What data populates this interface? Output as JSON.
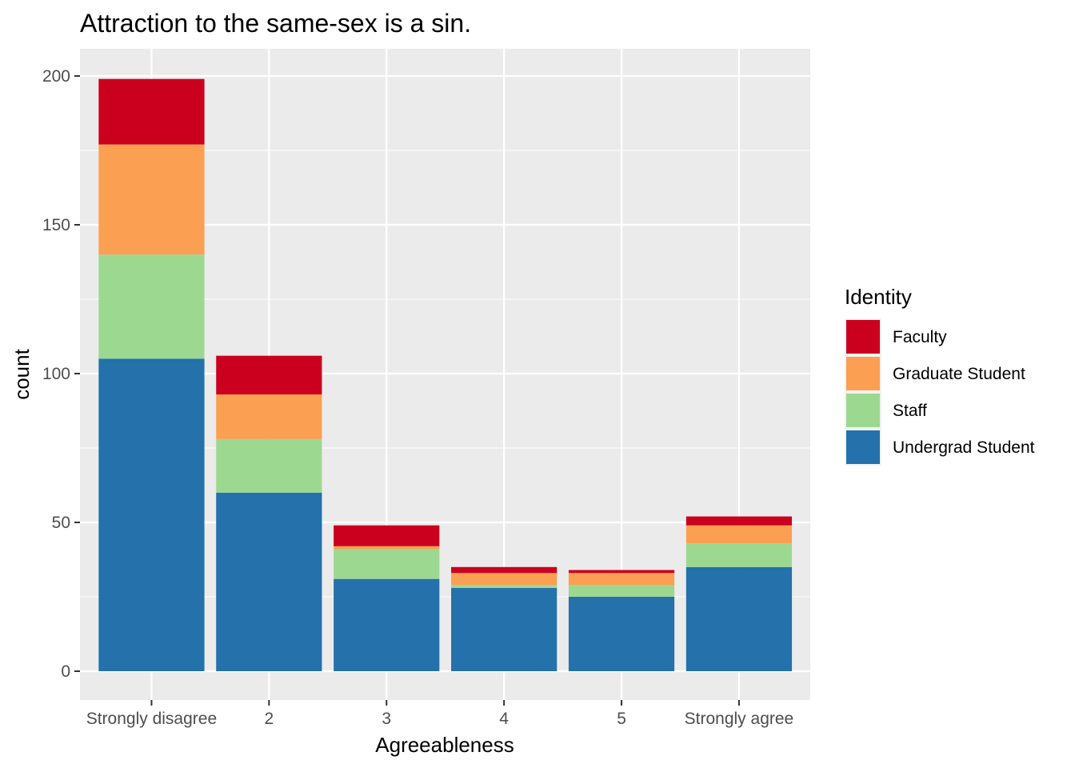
{
  "chart_data": {
    "type": "bar",
    "stacked": true,
    "title": "Attraction to the same-sex is a sin.",
    "xlabel": "Agreeableness",
    "ylabel": "count",
    "categories": [
      "Strongly disagree",
      "2",
      "3",
      "4",
      "5",
      "Strongly agree"
    ],
    "ylim": [
      -9,
      209
    ],
    "yticks": [
      0,
      50,
      100,
      150,
      200
    ],
    "grid": true,
    "legend": {
      "title": "Identity",
      "position": "right"
    },
    "series": [
      {
        "name": "Undergrad Student",
        "color": "#2471AB",
        "values": [
          105,
          60,
          31,
          28,
          25,
          35
        ]
      },
      {
        "name": "Staff",
        "color": "#9DD891",
        "values": [
          35,
          18,
          10,
          1,
          4,
          8
        ]
      },
      {
        "name": "Graduate Student",
        "color": "#FB9F52",
        "values": [
          37,
          15,
          1,
          4,
          4,
          6
        ]
      },
      {
        "name": "Faculty",
        "color": "#CA001E",
        "values": [
          22,
          13,
          7,
          2,
          1,
          3
        ]
      }
    ],
    "legend_order": [
      "Faculty",
      "Graduate Student",
      "Staff",
      "Undergrad Student"
    ]
  }
}
